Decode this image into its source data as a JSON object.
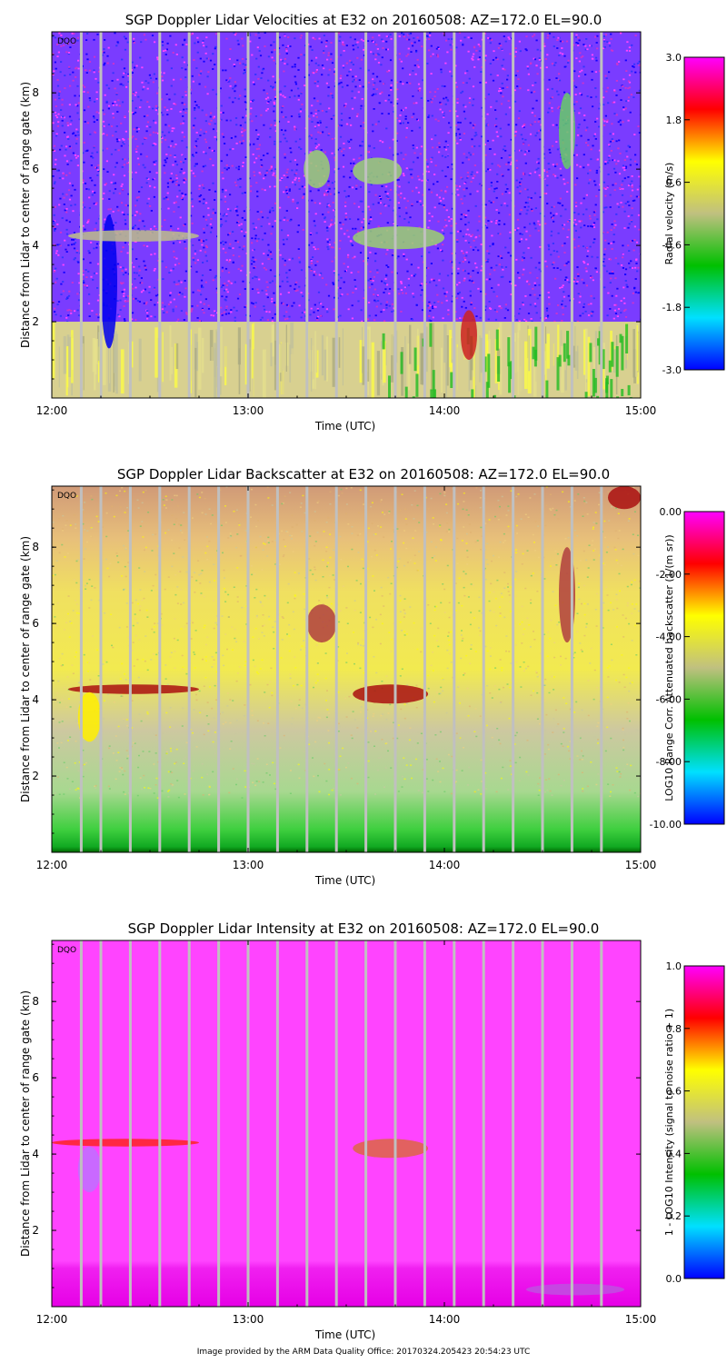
{
  "footer": "Image provided by the ARM Data Quality Office: 20170324.205423 20:54:23 UTC",
  "chart_data": [
    {
      "type": "heatmap",
      "title": "SGP Doppler Lidar Velocities at E32 on 20160508: AZ=172.0 EL=90.0",
      "xlabel": "Time (UTC)",
      "ylabel": "Distance from Lidar to center of range gate (km)",
      "x_ticks": [
        "12:00",
        "13:00",
        "14:00",
        "15:00"
      ],
      "y_ticks": [
        "2",
        "4",
        "6",
        "8"
      ],
      "xlim": [
        "12:00",
        "15:00"
      ],
      "ylim": [
        0,
        9.6
      ],
      "flag": "DQO",
      "colorbar": {
        "label": "Radial velocity (m/s)",
        "ticks": [
          "3.0",
          "1.8",
          "0.6",
          "-0.6",
          "-1.8",
          "-3.0"
        ],
        "range": [
          -3.0,
          3.0
        ],
        "colors": [
          "#0000ff",
          "#00e0ff",
          "#00c000",
          "#c0c080",
          "#ffff00",
          "#ff0000",
          "#ff00ff"
        ]
      },
      "background": "#7a3cff",
      "noise_colors": [
        "#3333ff",
        "#ff44ff",
        "#cc33cc",
        "#1100ff"
      ],
      "band": {
        "top_km": 2.0,
        "colors": [
          "#d8d090",
          "#bfbf9c",
          "#ffff40",
          "#a8a880",
          "#e6e08c"
        ]
      },
      "features": [
        {
          "t0": "12:15",
          "t1": "12:20",
          "y0": 1.3,
          "y1": 4.8,
          "color": "#0000ee"
        },
        {
          "t0": "12:05",
          "t1": "12:45",
          "y0": 4.1,
          "y1": 4.4,
          "color": "#bdbd88"
        },
        {
          "t0": "13:17",
          "t1": "13:25",
          "y0": 5.5,
          "y1": 6.5,
          "color": "#9bd070"
        },
        {
          "t0": "13:32",
          "t1": "13:47",
          "y0": 5.6,
          "y1": 6.3,
          "color": "#9bd070"
        },
        {
          "t0": "13:32",
          "t1": "14:00",
          "y0": 3.9,
          "y1": 4.5,
          "color": "#9bd070"
        },
        {
          "t0": "14:05",
          "t1": "14:10",
          "y0": 1.0,
          "y1": 2.3,
          "color": "#cc2222"
        },
        {
          "t0": "14:35",
          "t1": "14:40",
          "y0": 6.0,
          "y1": 8.0,
          "color": "#66cc66"
        }
      ]
    },
    {
      "type": "heatmap",
      "title": "SGP Doppler Lidar Backscatter at E32 on 20160508: AZ=172.0 EL=90.0",
      "xlabel": "Time (UTC)",
      "ylabel": "Distance from Lidar to center of range gate (km)",
      "x_ticks": [
        "12:00",
        "13:00",
        "14:00",
        "15:00"
      ],
      "y_ticks": [
        "2",
        "4",
        "6",
        "8"
      ],
      "xlim": [
        "12:00",
        "15:00"
      ],
      "ylim": [
        0,
        9.6
      ],
      "flag": "DQO",
      "colorbar": {
        "label": "LOG10 Range Corr. Attenuated backscatter (1/(m sr))",
        "ticks": [
          "0.00",
          "-2.00",
          "-4.00",
          "-6.00",
          "-8.00",
          "-10.00"
        ],
        "range": [
          -10.0,
          0.0
        ],
        "colors": [
          "#0000ff",
          "#00e0ff",
          "#00c000",
          "#c0c080",
          "#ffff00",
          "#ff0000",
          "#ff00ff"
        ]
      },
      "gradient": [
        {
          "y": 9.6,
          "color": "#d09a78"
        },
        {
          "y": 8.2,
          "color": "#e8c07a"
        },
        {
          "y": 6.8,
          "color": "#f0e060"
        },
        {
          "y": 4.8,
          "color": "#f2ea50"
        },
        {
          "y": 3.2,
          "color": "#cdc8a0"
        },
        {
          "y": 1.6,
          "color": "#a8d890"
        },
        {
          "y": 0.6,
          "color": "#3fcf3f"
        },
        {
          "y": 0.15,
          "color": "#11aa22"
        },
        {
          "y": 0.0,
          "color": "#006600"
        }
      ],
      "features": [
        {
          "t0": "12:05",
          "t1": "12:45",
          "y0": 4.15,
          "y1": 4.4,
          "color": "#aa1111"
        },
        {
          "t0": "12:08",
          "t1": "12:15",
          "y0": 2.9,
          "y1": 4.2,
          "color": "#ffee00"
        },
        {
          "t0": "13:32",
          "t1": "13:55",
          "y0": 3.9,
          "y1": 4.4,
          "color": "#aa1111"
        },
        {
          "t0": "13:18",
          "t1": "13:27",
          "y0": 5.5,
          "y1": 6.5,
          "color": "#b04040"
        },
        {
          "t0": "14:35",
          "t1": "14:40",
          "y0": 5.5,
          "y1": 8.0,
          "color": "#b04040"
        },
        {
          "t0": "14:50",
          "t1": "15:00",
          "y0": 9.0,
          "y1": 9.6,
          "color": "#aa1111"
        }
      ]
    },
    {
      "type": "heatmap",
      "title": "SGP Doppler Lidar Intensity at E32 on 20160508: AZ=172.0 EL=90.0",
      "xlabel": "Time (UTC)",
      "ylabel": "Distance from Lidar to center of range gate (km)",
      "x_ticks": [
        "12:00",
        "13:00",
        "14:00",
        "15:00"
      ],
      "y_ticks": [
        "2",
        "4",
        "6",
        "8"
      ],
      "xlim": [
        "12:00",
        "15:00"
      ],
      "ylim": [
        0,
        9.6
      ],
      "flag": "DQO",
      "colorbar": {
        "label": "1 - LOG10 Intensity (signal to noise ratio + 1)",
        "ticks": [
          "1.0",
          "0.8",
          "0.6",
          "0.4",
          "0.2",
          "0.0"
        ],
        "range": [
          0.0,
          1.0
        ],
        "colors": [
          "#0000ff",
          "#00e0ff",
          "#00c000",
          "#c0c080",
          "#ffff00",
          "#ff0000",
          "#ff00ff"
        ]
      },
      "gradient": [
        {
          "y": 9.6,
          "color": "#ff44ff"
        },
        {
          "y": 1.2,
          "color": "#ff44ff"
        },
        {
          "y": 1.0,
          "color": "#f020f0"
        },
        {
          "y": 0.0,
          "color": "#e600e6"
        }
      ],
      "features": [
        {
          "t0": "12:00",
          "t1": "12:45",
          "y0": 4.2,
          "y1": 4.4,
          "color": "#ff2222"
        },
        {
          "t0": "12:08",
          "t1": "12:15",
          "y0": 3.0,
          "y1": 4.2,
          "color": "#c070ff"
        },
        {
          "t0": "13:32",
          "t1": "13:55",
          "y0": 3.9,
          "y1": 4.4,
          "color": "#dd6644"
        },
        {
          "t0": "14:25",
          "t1": "14:55",
          "y0": 0.3,
          "y1": 0.6,
          "color": "#c050e0"
        }
      ]
    }
  ],
  "gap_times": [
    "12:09",
    "12:15",
    "12:24",
    "12:33",
    "12:42",
    "12:51",
    "13:00",
    "13:09",
    "13:18",
    "13:27",
    "13:36",
    "13:45",
    "13:54",
    "14:03",
    "14:12",
    "14:21",
    "14:30",
    "14:39",
    "14:48"
  ]
}
